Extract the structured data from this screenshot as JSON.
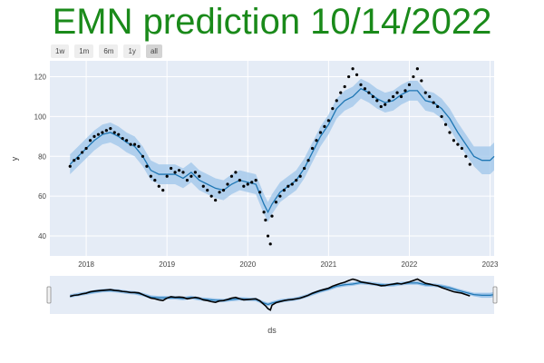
{
  "chart_data": {
    "type": "line",
    "title": "EMN prediction 10/14/2022",
    "xlabel": "ds",
    "ylabel": "y",
    "xlim": [
      2017.55,
      2023.05
    ],
    "ylim": [
      30,
      128
    ],
    "x_ticks": [
      2018,
      2019,
      2020,
      2021,
      2022,
      2023
    ],
    "x_tick_labels": [
      "2018",
      "2019",
      "2020",
      "2021",
      "2022",
      "2023"
    ],
    "y_ticks": [
      40,
      60,
      80,
      100,
      120
    ],
    "y_tick_labels": [
      "40",
      "60",
      "80",
      "100",
      "120"
    ],
    "grid": true,
    "legend": "none",
    "range_selector": [
      "1w",
      "1m",
      "6m",
      "1y",
      "all"
    ],
    "range_selector_active": "all",
    "range_slider": true,
    "colors": {
      "forecast_line": "#1f77b4",
      "band": "#9ec5ea",
      "actual_points": "#000000",
      "plot_bg": "#e5ecf6",
      "title": "#1a8a1a"
    },
    "series": [
      {
        "name": "",
        "kind": "forecast",
        "x": [
          2017.8,
          2017.9,
          2018.0,
          2018.1,
          2018.2,
          2018.3,
          2018.4,
          2018.5,
          2018.6,
          2018.7,
          2018.8,
          2018.9,
          2019.0,
          2019.1,
          2019.2,
          2019.3,
          2019.4,
          2019.5,
          2019.6,
          2019.7,
          2019.8,
          2019.9,
          2020.0,
          2020.1,
          2020.2,
          2020.25,
          2020.3,
          2020.4,
          2020.5,
          2020.6,
          2020.7,
          2020.8,
          2020.9,
          2021.0,
          2021.1,
          2021.2,
          2021.3,
          2021.4,
          2021.5,
          2021.6,
          2021.7,
          2021.8,
          2021.9,
          2022.0,
          2022.1,
          2022.2,
          2022.3,
          2022.4,
          2022.5,
          2022.6,
          2022.7,
          2022.8,
          2022.9,
          2023.0,
          2023.05
        ],
        "y": [
          76,
          80,
          84,
          88,
          91,
          92,
          90,
          87,
          85,
          80,
          73,
          71,
          71,
          71,
          69,
          72,
          68,
          66,
          64,
          63,
          66,
          68,
          67,
          66,
          56,
          52,
          56,
          62,
          65,
          68,
          74,
          82,
          90,
          96,
          104,
          108,
          110,
          114,
          112,
          109,
          107,
          108,
          111,
          113,
          113,
          108,
          107,
          104,
          99,
          92,
          86,
          80,
          78,
          78,
          80
        ],
        "band_half_width": [
          5,
          5,
          5,
          5,
          5,
          5,
          5,
          5,
          5,
          5,
          5,
          5,
          5,
          5,
          5,
          5,
          5,
          5,
          5,
          5,
          5,
          5,
          5,
          5,
          5,
          5,
          5,
          5,
          5,
          5,
          5,
          5,
          5,
          5,
          5,
          5,
          5,
          5,
          5,
          5,
          5,
          5,
          5,
          5,
          5,
          5,
          5,
          5,
          5,
          5,
          5,
          5,
          7,
          7,
          7
        ]
      },
      {
        "name": "",
        "kind": "actual",
        "x": [
          2017.8,
          2017.85,
          2017.9,
          2017.95,
          2018.0,
          2018.05,
          2018.1,
          2018.15,
          2018.2,
          2018.25,
          2018.3,
          2018.35,
          2018.4,
          2018.45,
          2018.5,
          2018.55,
          2018.6,
          2018.65,
          2018.7,
          2018.75,
          2018.8,
          2018.85,
          2018.9,
          2018.95,
          2019.0,
          2019.05,
          2019.1,
          2019.15,
          2019.2,
          2019.25,
          2019.3,
          2019.35,
          2019.4,
          2019.45,
          2019.5,
          2019.55,
          2019.6,
          2019.65,
          2019.7,
          2019.75,
          2019.8,
          2019.85,
          2019.9,
          2019.95,
          2020.0,
          2020.05,
          2020.1,
          2020.15,
          2020.2,
          2020.22,
          2020.25,
          2020.28,
          2020.3,
          2020.35,
          2020.4,
          2020.45,
          2020.5,
          2020.55,
          2020.6,
          2020.65,
          2020.7,
          2020.75,
          2020.8,
          2020.85,
          2020.9,
          2020.95,
          2021.0,
          2021.05,
          2021.1,
          2021.15,
          2021.2,
          2021.25,
          2021.3,
          2021.35,
          2021.4,
          2021.45,
          2021.5,
          2021.55,
          2021.6,
          2021.65,
          2021.7,
          2021.75,
          2021.8,
          2021.85,
          2021.9,
          2021.95,
          2022.0,
          2022.05,
          2022.1,
          2022.15,
          2022.2,
          2022.25,
          2022.3,
          2022.35,
          2022.4,
          2022.45,
          2022.5,
          2022.55,
          2022.6,
          2022.65,
          2022.7,
          2022.75
        ],
        "y": [
          75,
          78,
          79,
          82,
          84,
          88,
          90,
          91,
          92,
          93,
          94,
          92,
          91,
          89,
          88,
          86,
          86,
          85,
          80,
          75,
          70,
          68,
          65,
          63,
          70,
          74,
          72,
          73,
          72,
          68,
          70,
          72,
          70,
          65,
          63,
          60,
          58,
          62,
          63,
          66,
          70,
          72,
          68,
          65,
          66,
          67,
          68,
          62,
          52,
          48,
          40,
          36,
          50,
          57,
          60,
          63,
          65,
          66,
          68,
          70,
          74,
          78,
          84,
          88,
          92,
          95,
          98,
          104,
          108,
          112,
          115,
          120,
          124,
          121,
          116,
          114,
          112,
          110,
          108,
          105,
          106,
          108,
          110,
          112,
          110,
          113,
          116,
          120,
          124,
          118,
          112,
          110,
          107,
          105,
          100,
          96,
          92,
          88,
          86,
          84,
          80,
          76
        ]
      }
    ]
  }
}
